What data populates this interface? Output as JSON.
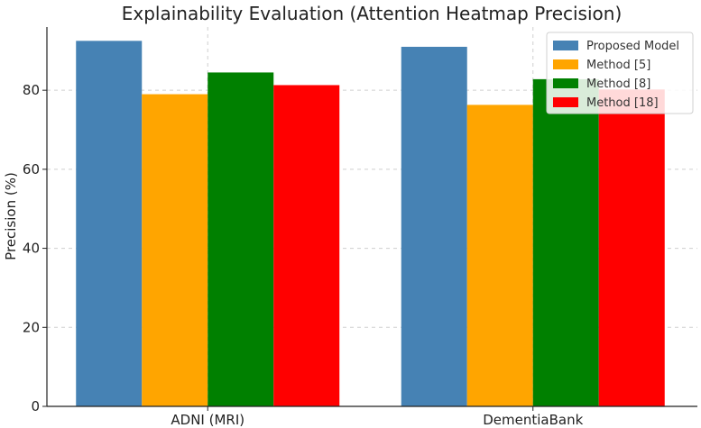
{
  "chart_data": {
    "type": "bar",
    "title": "Explainability Evaluation (Attention Heatmap Precision)",
    "xlabel": "",
    "ylabel": "Precision (%)",
    "ylim": [
      0,
      96
    ],
    "yticks": [
      0,
      20,
      40,
      60,
      80
    ],
    "categories": [
      "ADNI (MRI)",
      "DementiaBank"
    ],
    "series": [
      {
        "name": "Proposed Model",
        "color": "#4682b4",
        "values": [
          92.5,
          91.0
        ]
      },
      {
        "name": "Method [5]",
        "color": "#ffa500",
        "values": [
          79.0,
          76.3
        ]
      },
      {
        "name": "Method [8]",
        "color": "#008000",
        "values": [
          84.5,
          82.8
        ]
      },
      {
        "name": "Method [18]",
        "color": "#ff0000",
        "values": [
          81.3,
          80.2
        ]
      }
    ],
    "grid": true,
    "legend_position": "top-right"
  }
}
